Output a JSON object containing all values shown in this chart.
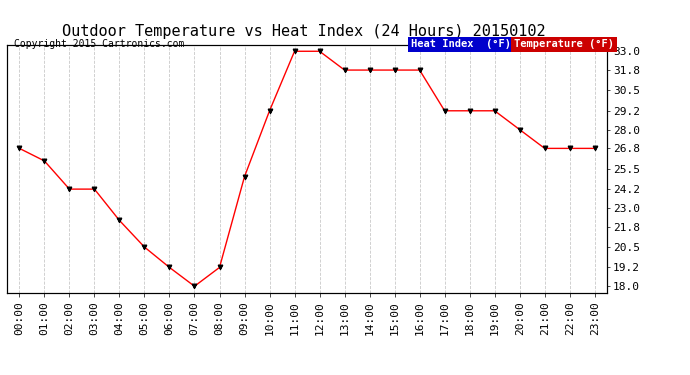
{
  "title": "Outdoor Temperature vs Heat Index (24 Hours) 20150102",
  "copyright": "Copyright 2015 Cartronics.com",
  "x_labels": [
    "00:00",
    "01:00",
    "02:00",
    "03:00",
    "04:00",
    "05:00",
    "06:00",
    "07:00",
    "08:00",
    "09:00",
    "10:00",
    "11:00",
    "12:00",
    "13:00",
    "14:00",
    "15:00",
    "16:00",
    "17:00",
    "18:00",
    "19:00",
    "20:00",
    "21:00",
    "22:00",
    "23:00"
  ],
  "y_ticks": [
    18.0,
    19.2,
    20.5,
    21.8,
    23.0,
    24.2,
    25.5,
    26.8,
    28.0,
    29.2,
    30.5,
    31.8,
    33.0
  ],
  "ylim": [
    17.6,
    33.4
  ],
  "temperature": [
    26.8,
    26.0,
    24.2,
    24.2,
    22.2,
    20.5,
    19.2,
    18.0,
    19.2,
    25.0,
    29.2,
    33.0,
    33.0,
    31.8,
    31.8,
    31.8,
    31.8,
    29.2,
    29.2,
    29.2,
    28.0,
    26.8,
    26.8,
    26.8
  ],
  "heat_index": [
    26.8,
    26.0,
    24.2,
    24.2,
    22.2,
    20.5,
    19.2,
    18.0,
    19.2,
    25.0,
    29.2,
    33.0,
    33.0,
    31.8,
    31.8,
    31.8,
    31.8,
    29.2,
    29.2,
    29.2,
    28.0,
    26.8,
    26.8,
    26.8
  ],
  "temp_color": "#ff0000",
  "heat_index_color": "#0000bb",
  "bg_color": "#ffffff",
  "plot_bg_color": "#ffffff",
  "grid_color": "#bbbbbb",
  "title_fontsize": 11,
  "tick_fontsize": 8,
  "copyright_fontsize": 7,
  "legend_heat_bg": "#0000cc",
  "legend_temp_bg": "#cc0000",
  "legend_text_color": "#ffffff"
}
